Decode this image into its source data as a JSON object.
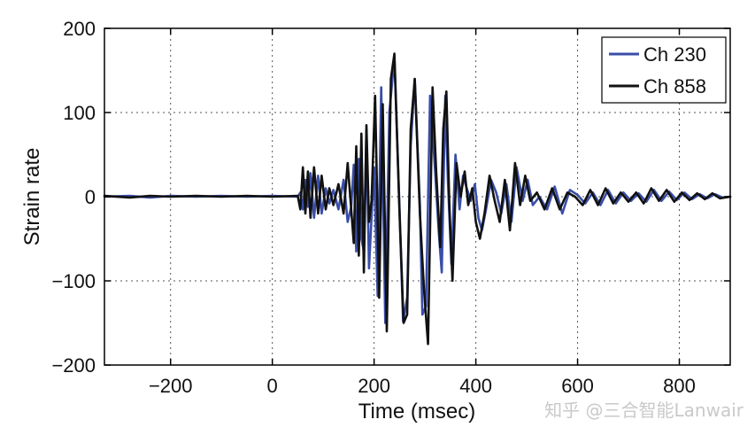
{
  "chart_data": {
    "type": "line",
    "title": "",
    "xlabel": "Time (msec)",
    "ylabel": "Strain rate",
    "xlim": [
      -330,
      900
    ],
    "ylim": [
      -200,
      200
    ],
    "xticks": [
      -200,
      0,
      200,
      400,
      600,
      800
    ],
    "yticks": [
      -200,
      -100,
      0,
      100,
      200
    ],
    "grid": true,
    "legend_position": "top-right",
    "series": [
      {
        "name": "Ch 230",
        "color": "#3a4ea8",
        "points": [
          [
            -330,
            0
          ],
          [
            -280,
            1
          ],
          [
            -240,
            -1
          ],
          [
            -200,
            1
          ],
          [
            -150,
            0
          ],
          [
            -100,
            1
          ],
          [
            -50,
            0
          ],
          [
            0,
            1
          ],
          [
            50,
            0
          ],
          [
            55,
            5
          ],
          [
            60,
            -15
          ],
          [
            65,
            20
          ],
          [
            70,
            -12
          ],
          [
            75,
            28
          ],
          [
            82,
            -25
          ],
          [
            90,
            25
          ],
          [
            97,
            -20
          ],
          [
            105,
            10
          ],
          [
            112,
            -8
          ],
          [
            120,
            8
          ],
          [
            130,
            -15
          ],
          [
            140,
            20
          ],
          [
            148,
            -30
          ],
          [
            155,
            -12
          ],
          [
            160,
            38
          ],
          [
            165,
            -65
          ],
          [
            170,
            45
          ],
          [
            175,
            -50
          ],
          [
            180,
            -65
          ],
          [
            185,
            80
          ],
          [
            190,
            -85
          ],
          [
            200,
            35
          ],
          [
            207,
            -118
          ],
          [
            214,
            130
          ],
          [
            222,
            -150
          ],
          [
            230,
            100
          ],
          [
            240,
            165
          ],
          [
            250,
            -15
          ],
          [
            257,
            -148
          ],
          [
            265,
            -120
          ],
          [
            272,
            60
          ],
          [
            280,
            140
          ],
          [
            290,
            -10
          ],
          [
            295,
            -140
          ],
          [
            302,
            -130
          ],
          [
            310,
            120
          ],
          [
            320,
            30
          ],
          [
            327,
            -40
          ],
          [
            333,
            -90
          ],
          [
            340,
            120
          ],
          [
            345,
            20
          ],
          [
            352,
            -80
          ],
          [
            360,
            50
          ],
          [
            368,
            -15
          ],
          [
            375,
            25
          ],
          [
            382,
            10
          ],
          [
            390,
            -5
          ],
          [
            398,
            15
          ],
          [
            405,
            -25
          ],
          [
            412,
            -40
          ],
          [
            420,
            -15
          ],
          [
            430,
            20
          ],
          [
            440,
            5
          ],
          [
            450,
            -20
          ],
          [
            460,
            15
          ],
          [
            470,
            -30
          ],
          [
            480,
            35
          ],
          [
            492,
            -5
          ],
          [
            502,
            20
          ],
          [
            512,
            -10
          ],
          [
            525,
            0
          ],
          [
            540,
            -15
          ],
          [
            555,
            12
          ],
          [
            570,
            -20
          ],
          [
            585,
            8
          ],
          [
            600,
            2
          ],
          [
            615,
            -8
          ],
          [
            630,
            5
          ],
          [
            645,
            -10
          ],
          [
            660,
            8
          ],
          [
            675,
            -8
          ],
          [
            690,
            5
          ],
          [
            705,
            -5
          ],
          [
            720,
            4
          ],
          [
            735,
            -6
          ],
          [
            750,
            8
          ],
          [
            765,
            -5
          ],
          [
            780,
            6
          ],
          [
            795,
            -4
          ],
          [
            810,
            5
          ],
          [
            825,
            -3
          ],
          [
            840,
            3
          ],
          [
            855,
            -2
          ],
          [
            870,
            3
          ],
          [
            885,
            -1
          ],
          [
            900,
            0
          ]
        ]
      },
      {
        "name": "Ch 858",
        "color": "#111111",
        "points": [
          [
            -330,
            1
          ],
          [
            -280,
            -1
          ],
          [
            -240,
            1
          ],
          [
            -200,
            0
          ],
          [
            -150,
            1
          ],
          [
            -100,
            0
          ],
          [
            -50,
            1
          ],
          [
            0,
            0
          ],
          [
            50,
            1
          ],
          [
            55,
            -15
          ],
          [
            60,
            35
          ],
          [
            65,
            -20
          ],
          [
            70,
            30
          ],
          [
            75,
            -25
          ],
          [
            82,
            35
          ],
          [
            90,
            -20
          ],
          [
            97,
            25
          ],
          [
            105,
            -15
          ],
          [
            112,
            10
          ],
          [
            120,
            -10
          ],
          [
            130,
            15
          ],
          [
            140,
            -20
          ],
          [
            148,
            40
          ],
          [
            155,
            -15
          ],
          [
            160,
            -55
          ],
          [
            165,
            60
          ],
          [
            170,
            -70
          ],
          [
            175,
            75
          ],
          [
            180,
            -90
          ],
          [
            185,
            85
          ],
          [
            190,
            -30
          ],
          [
            195,
            -5
          ],
          [
            202,
            120
          ],
          [
            210,
            -120
          ],
          [
            217,
            110
          ],
          [
            225,
            -160
          ],
          [
            233,
            140
          ],
          [
            240,
            170
          ],
          [
            250,
            -20
          ],
          [
            258,
            -150
          ],
          [
            265,
            -140
          ],
          [
            272,
            80
          ],
          [
            280,
            140
          ],
          [
            290,
            -20
          ],
          [
            298,
            -110
          ],
          [
            306,
            -175
          ],
          [
            315,
            130
          ],
          [
            322,
            30
          ],
          [
            330,
            -60
          ],
          [
            336,
            80
          ],
          [
            342,
            125
          ],
          [
            348,
            -10
          ],
          [
            354,
            -100
          ],
          [
            362,
            40
          ],
          [
            370,
            0
          ],
          [
            378,
            30
          ],
          [
            385,
            -10
          ],
          [
            393,
            10
          ],
          [
            400,
            -30
          ],
          [
            408,
            -50
          ],
          [
            417,
            -20
          ],
          [
            427,
            25
          ],
          [
            437,
            -5
          ],
          [
            447,
            -30
          ],
          [
            457,
            20
          ],
          [
            467,
            -40
          ],
          [
            477,
            40
          ],
          [
            487,
            -10
          ],
          [
            497,
            25
          ],
          [
            507,
            -5
          ],
          [
            520,
            5
          ],
          [
            535,
            -15
          ],
          [
            550,
            10
          ],
          [
            565,
            -15
          ],
          [
            580,
            5
          ],
          [
            595,
            0
          ],
          [
            610,
            -10
          ],
          [
            625,
            8
          ],
          [
            640,
            -10
          ],
          [
            655,
            10
          ],
          [
            670,
            -8
          ],
          [
            685,
            5
          ],
          [
            700,
            -6
          ],
          [
            715,
            5
          ],
          [
            730,
            -8
          ],
          [
            745,
            10
          ],
          [
            760,
            -5
          ],
          [
            775,
            8
          ],
          [
            790,
            -6
          ],
          [
            805,
            5
          ],
          [
            820,
            -4
          ],
          [
            835,
            4
          ],
          [
            850,
            -3
          ],
          [
            865,
            4
          ],
          [
            880,
            -2
          ],
          [
            900,
            0
          ]
        ]
      }
    ]
  },
  "watermark_text": "知乎 @三合智能Lanwair"
}
